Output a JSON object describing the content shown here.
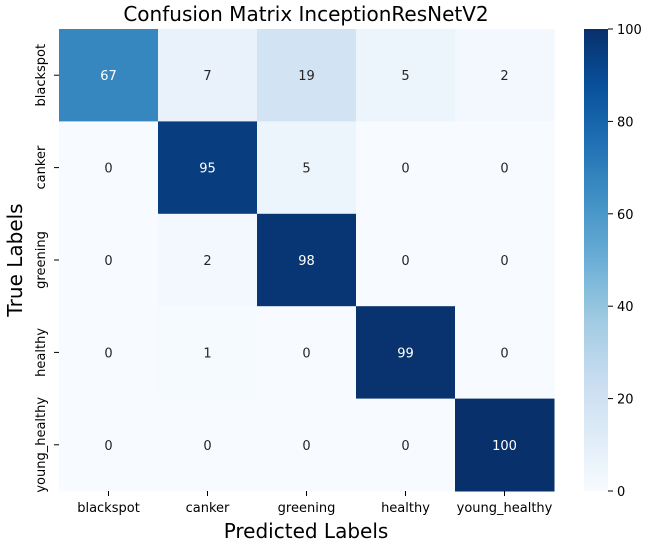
{
  "chart_data": {
    "type": "heatmap",
    "title": "Confusion Matrix InceptionResNetV2",
    "xlabel": "Predicted Labels",
    "ylabel": "True Labels",
    "x_categories": [
      "blackspot",
      "canker",
      "greening",
      "healthy",
      "young_healthy"
    ],
    "y_categories": [
      "blackspot",
      "canker",
      "greening",
      "healthy",
      "young_healthy"
    ],
    "values": [
      [
        67,
        7,
        19,
        5,
        2
      ],
      [
        0,
        95,
        5,
        0,
        0
      ],
      [
        0,
        2,
        98,
        0,
        0
      ],
      [
        0,
        1,
        0,
        99,
        0
      ],
      [
        0,
        0,
        0,
        0,
        100
      ]
    ],
    "colorbar": {
      "range": [
        0,
        100
      ],
      "ticks": [
        0,
        20,
        40,
        60,
        80,
        100
      ],
      "colormap": "Blues",
      "low_color": "#f7fbff",
      "high_color": "#08306b"
    }
  }
}
